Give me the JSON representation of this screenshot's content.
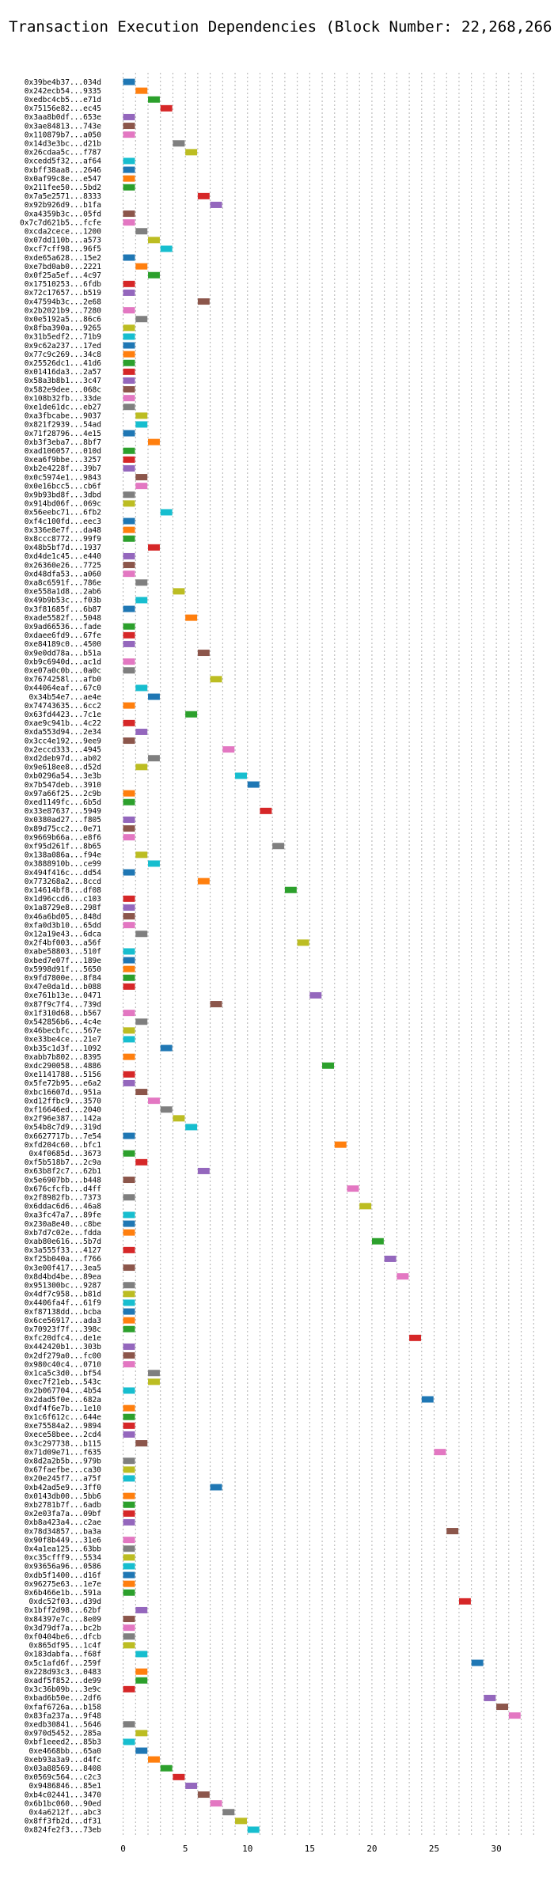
{
  "chart_data": {
    "type": "gantt",
    "title": "Transaction Execution Dependencies (Block Number: 22,268,266)",
    "xlim": [
      -1.5,
      34
    ],
    "xticks": [
      0,
      5,
      10,
      15,
      20,
      25,
      30
    ],
    "grid": true,
    "palette": [
      "#1f77b4",
      "#ff7f0e",
      "#2ca02c",
      "#d62728",
      "#9467bd",
      "#8c564b",
      "#e377c2",
      "#7f7f7f",
      "#bcbd22",
      "#17becf"
    ],
    "bar_duration": 1,
    "transactions": [
      {
        "label": "0x39be4b37...034d",
        "start": 0
      },
      {
        "label": "0x242ecb54...9335",
        "start": 1
      },
      {
        "label": "0xedbc4cb5...e71d",
        "start": 2
      },
      {
        "label": "0x75156e82...ec45",
        "start": 3
      },
      {
        "label": "0x3aa8b0df...653e",
        "start": 0
      },
      {
        "label": "0x3ae84813...743e",
        "start": 0
      },
      {
        "label": "0x110879b7...a050",
        "start": 0
      },
      {
        "label": "0x14d3e3bc...d21b",
        "start": 4
      },
      {
        "label": "0x26cdaa5c...f787",
        "start": 5
      },
      {
        "label": "0xcedd5f32...af64",
        "start": 0
      },
      {
        "label": "0xbff38aa8...2646",
        "start": 0
      },
      {
        "label": "0x0af99c8e...e547",
        "start": 0
      },
      {
        "label": "0x211fee50...5bd2",
        "start": 0
      },
      {
        "label": "0x7a5e2571...8333",
        "start": 6
      },
      {
        "label": "0x92b926d9...b1fa",
        "start": 7
      },
      {
        "label": "0xa4359b3c...05fd",
        "start": 0
      },
      {
        "label": "0x7c7d621b5...fcfe",
        "start": 0
      },
      {
        "label": "0xcda2cece...1200",
        "start": 1
      },
      {
        "label": "0x07dd110b...a573",
        "start": 2
      },
      {
        "label": "0xcf7cff98...96f5",
        "start": 3
      },
      {
        "label": "0xde65a628...15e2",
        "start": 0
      },
      {
        "label": "0xe7bd0ab0...2221",
        "start": 1
      },
      {
        "label": "0x0f25a5ef...4c97",
        "start": 2
      },
      {
        "label": "0x17510253...6fdb",
        "start": 0
      },
      {
        "label": "0x72c17657...b519",
        "start": 0
      },
      {
        "label": "0x47594b3c...2e68",
        "start": 6
      },
      {
        "label": "0x2b2021b9...7280",
        "start": 0
      },
      {
        "label": "0x0e5192a5...86c6",
        "start": 1
      },
      {
        "label": "0x8fba390a...9265",
        "start": 0
      },
      {
        "label": "0x31b5edf2...71b9",
        "start": 0
      },
      {
        "label": "0x9c62a237...17ed",
        "start": 0
      },
      {
        "label": "0x77c9c269...34c8",
        "start": 0
      },
      {
        "label": "0x25526dc1...41d6",
        "start": 0
      },
      {
        "label": "0x01416da3...2a57",
        "start": 0
      },
      {
        "label": "0x58a3b8b1...3c47",
        "start": 0
      },
      {
        "label": "0x582e9dee...068c",
        "start": 0
      },
      {
        "label": "0x108b32fb...33de",
        "start": 0
      },
      {
        "label": "0xe1de61dc...eb27",
        "start": 0
      },
      {
        "label": "0xa3fbcabe...9037",
        "start": 1
      },
      {
        "label": "0x821f2939...54ad",
        "start": 1
      },
      {
        "label": "0x71f28796...4e15",
        "start": 0
      },
      {
        "label": "0xb3f3eba7...8bf7",
        "start": 2
      },
      {
        "label": "0xad106057...010d",
        "start": 0
      },
      {
        "label": "0xea6f9bbe...3257",
        "start": 0
      },
      {
        "label": "0xb2e4228f...39b7",
        "start": 0
      },
      {
        "label": "0x0c5974e1...9843",
        "start": 1
      },
      {
        "label": "0x0e16bcc5...cb6f",
        "start": 1
      },
      {
        "label": "0x9b93bd8f...3dbd",
        "start": 0
      },
      {
        "label": "0x914bd06f...069c",
        "start": 0
      },
      {
        "label": "0x56eebc71...6fb2",
        "start": 3
      },
      {
        "label": "0xf4c100fd...eec3",
        "start": 0
      },
      {
        "label": "0x336e8e7f...da48",
        "start": 0
      },
      {
        "label": "0x8ccc8772...99f9",
        "start": 0
      },
      {
        "label": "0x48b5bf7d...1937",
        "start": 2
      },
      {
        "label": "0xd4de1c45...e440",
        "start": 0
      },
      {
        "label": "0x26360e26...7725",
        "start": 0
      },
      {
        "label": "0xd48dfa53...a060",
        "start": 0
      },
      {
        "label": "0xa8c6591f...786e",
        "start": 1
      },
      {
        "label": "0xe558a1d8...2ab6",
        "start": 4
      },
      {
        "label": "0x49b9b53c...f03b",
        "start": 1
      },
      {
        "label": "0x3f81685f...6b87",
        "start": 0
      },
      {
        "label": "0xade5582f...5048",
        "start": 5
      },
      {
        "label": "0x9ad66536...fade",
        "start": 0
      },
      {
        "label": "0xdaee6fd9...67fe",
        "start": 0
      },
      {
        "label": "0xe84189c0...4500",
        "start": 0
      },
      {
        "label": "0x9e0dd78a...b51a",
        "start": 6
      },
      {
        "label": "0xb9c6940d...ac1d",
        "start": 0
      },
      {
        "label": "0xe07a0c0b...0a0c",
        "start": 0
      },
      {
        "label": "0x7674258l...afb0",
        "start": 7
      },
      {
        "label": "0x44064eaf...67c0",
        "start": 1
      },
      {
        "label": "0x34b54e7...ae4e",
        "start": 2
      },
      {
        "label": "0x74743635...6cc2",
        "start": 0
      },
      {
        "label": "0x63fd4423...7c1e",
        "start": 5
      },
      {
        "label": "0xae9c941b...4c22",
        "start": 0
      },
      {
        "label": "0xda553d94...2e34",
        "start": 1
      },
      {
        "label": "0x3cc4e192...9ee9",
        "start": 0
      },
      {
        "label": "0x2eccd333...4945",
        "start": 8
      },
      {
        "label": "0xd2deb97d...ab02",
        "start": 2
      },
      {
        "label": "0x9e618ee8...d52d",
        "start": 1
      },
      {
        "label": "0xb0296a54...3e3b",
        "start": 9
      },
      {
        "label": "0x7b547deb...3910",
        "start": 10
      },
      {
        "label": "0x97a66f25...2c9b",
        "start": 0
      },
      {
        "label": "0xed1149fc...6b5d",
        "start": 0
      },
      {
        "label": "0x33e87637...5949",
        "start": 11
      },
      {
        "label": "0x0380ad27...f805",
        "start": 0
      },
      {
        "label": "0x89d75cc2...0e71",
        "start": 0
      },
      {
        "label": "0x9669b66a...e8f6",
        "start": 0
      },
      {
        "label": "0xf95d261f...8b65",
        "start": 12
      },
      {
        "label": "0x138a086a...f94e",
        "start": 1
      },
      {
        "label": "0x3888910b...ce99",
        "start": 2
      },
      {
        "label": "0x494f416c...dd54",
        "start": 0
      },
      {
        "label": "0x773268a2...8ccd",
        "start": 6
      },
      {
        "label": "0x14614bf8...df08",
        "start": 13
      },
      {
        "label": "0x1d96ccd6...c103",
        "start": 0
      },
      {
        "label": "0x1a8729e8...298f",
        "start": 0
      },
      {
        "label": "0x46a6bd05...848d",
        "start": 0
      },
      {
        "label": "0xfa0d3b10...65dd",
        "start": 0
      },
      {
        "label": "0x12a19e43...6dca",
        "start": 1
      },
      {
        "label": "0x2f4bf003...a56f",
        "start": 14
      },
      {
        "label": "0xabe58803...510f",
        "start": 0
      },
      {
        "label": "0xbed7e07f...189e",
        "start": 0
      },
      {
        "label": "0x5998d91f...5650",
        "start": 0
      },
      {
        "label": "0x9fd7800e...8f84",
        "start": 0
      },
      {
        "label": "0x47e0da1d...b088",
        "start": 0
      },
      {
        "label": "0xe761b13e...0471",
        "start": 15
      },
      {
        "label": "0x87f9c7f4...739d",
        "start": 7
      },
      {
        "label": "0x1f310d68...b567",
        "start": 0
      },
      {
        "label": "0x542856b6...4c4e",
        "start": 1
      },
      {
        "label": "0x46becbfc...567e",
        "start": 0
      },
      {
        "label": "0xe33be4ce...21e7",
        "start": 0
      },
      {
        "label": "0xb35c1d3f...1092",
        "start": 3
      },
      {
        "label": "0xabb7b802...8395",
        "start": 0
      },
      {
        "label": "0xdc290058...4886",
        "start": 16
      },
      {
        "label": "0xe1141788...5156",
        "start": 0
      },
      {
        "label": "0x5fe72b95...e6a2",
        "start": 0
      },
      {
        "label": "0xbc16607d...951a",
        "start": 1
      },
      {
        "label": "0xd12ffbc9...3570",
        "start": 2
      },
      {
        "label": "0xf16646ed...2040",
        "start": 3
      },
      {
        "label": "0x2f96e387...142a",
        "start": 4
      },
      {
        "label": "0x54b8c7d9...319d",
        "start": 5
      },
      {
        "label": "0x6627717b...7e54",
        "start": 0
      },
      {
        "label": "0xfd204c60...bfc1",
        "start": 17
      },
      {
        "label": "0x4f0685d...3673",
        "start": 0
      },
      {
        "label": "0xf5b518b7...2c9a",
        "start": 1
      },
      {
        "label": "0x63b8f2c7...62b1",
        "start": 6
      },
      {
        "label": "0x5e6907bb...b448",
        "start": 0
      },
      {
        "label": "0x676cfcfb...d4ff",
        "start": 18
      },
      {
        "label": "0x2f8982fb...7373",
        "start": 0
      },
      {
        "label": "0x6ddac6d6...46a8",
        "start": 19
      },
      {
        "label": "0xa3fc47a7...89fe",
        "start": 0
      },
      {
        "label": "0x230a8e40...c8be",
        "start": 0
      },
      {
        "label": "0xb7d7c02e...fdda",
        "start": 0
      },
      {
        "label": "0xab80e616...5b7d",
        "start": 20
      },
      {
        "label": "0x3a555f33...4127",
        "start": 0
      },
      {
        "label": "0xf25b040a...f766",
        "start": 21
      },
      {
        "label": "0x3e00f417...3ea5",
        "start": 0
      },
      {
        "label": "0x8d4bd4be...89ea",
        "start": 22
      },
      {
        "label": "0x951300bc...9287",
        "start": 0
      },
      {
        "label": "0x4df7c958...b81d",
        "start": 0
      },
      {
        "label": "0x4406fa4f...61f9",
        "start": 0
      },
      {
        "label": "0xf87138dd...bcba",
        "start": 0
      },
      {
        "label": "0x6ce56917...ada3",
        "start": 0
      },
      {
        "label": "0x70923f7f...398c",
        "start": 0
      },
      {
        "label": "0xfc20dfc4...de1e",
        "start": 23
      },
      {
        "label": "0x442420b1...303b",
        "start": 0
      },
      {
        "label": "0x2df279a0...fc00",
        "start": 0
      },
      {
        "label": "0x980c40c4...0710",
        "start": 0
      },
      {
        "label": "0x1ca5c3d0...bf54",
        "start": 2
      },
      {
        "label": "0xec7f21eb...543c",
        "start": 2
      },
      {
        "label": "0x2b067704...4b54",
        "start": 0
      },
      {
        "label": "0x2dad5f0e...682a",
        "start": 24
      },
      {
        "label": "0xdf4f6e7b...1e10",
        "start": 0
      },
      {
        "label": "0x1c6f612c...644e",
        "start": 0
      },
      {
        "label": "0xe75584a2...9894",
        "start": 0
      },
      {
        "label": "0xece58bee...2cd4",
        "start": 0
      },
      {
        "label": "0x3c297738...b115",
        "start": 1
      },
      {
        "label": "0x71d09e71...f635",
        "start": 25
      },
      {
        "label": "0x8d2a2b5b...979b",
        "start": 0
      },
      {
        "label": "0x67faefbe...ca30",
        "start": 0
      },
      {
        "label": "0x20e245f7...a75f",
        "start": 0
      },
      {
        "label": "0xb42ad5e9...3ff0",
        "start": 7
      },
      {
        "label": "0x0143db00...5bb6",
        "start": 0
      },
      {
        "label": "0xb2781b7f...6adb",
        "start": 0
      },
      {
        "label": "0x2e03fa7a...09bf",
        "start": 0
      },
      {
        "label": "0xb8a423a4...c2ae",
        "start": 0
      },
      {
        "label": "0x78d34857...ba3a",
        "start": 26
      },
      {
        "label": "0x90f8b449...31e6",
        "start": 0
      },
      {
        "label": "0x4a1ea125...63bb",
        "start": 0
      },
      {
        "label": "0xc35cfff9...5534",
        "start": 0
      },
      {
        "label": "0x93656a96...0586",
        "start": 0
      },
      {
        "label": "0xdb5f1400...d16f",
        "start": 0
      },
      {
        "label": "0x96275e63...1e7e",
        "start": 0
      },
      {
        "label": "0x6b466e1b...591a",
        "start": 0
      },
      {
        "label": "0xdc52f03...d39d",
        "start": 27
      },
      {
        "label": "0x1bff2d98...62bf",
        "start": 1
      },
      {
        "label": "0x84397e7c...8e09",
        "start": 0
      },
      {
        "label": "0x3d79df7a...bc2b",
        "start": 0
      },
      {
        "label": "0xf0404be6...dfcb",
        "start": 0
      },
      {
        "label": "0x865df95...1c4f",
        "start": 0
      },
      {
        "label": "0x183dabfa...f68f",
        "start": 1
      },
      {
        "label": "0x5c1afd6f...259f",
        "start": 28
      },
      {
        "label": "0x228d93c3...0483",
        "start": 1
      },
      {
        "label": "0xadf5f852...de99",
        "start": 1
      },
      {
        "label": "0x3c36b09b...3e9c",
        "start": 0
      },
      {
        "label": "0xbad6b50e...2df6",
        "start": 29
      },
      {
        "label": "0xfaf6726a...b158",
        "start": 30
      },
      {
        "label": "0x83fa237a...9f48",
        "start": 31
      },
      {
        "label": "0xedb30841...5646",
        "start": 0
      },
      {
        "label": "0x970d5452...285a",
        "start": 1
      },
      {
        "label": "0xbf1eeed2...85b3",
        "start": 0
      },
      {
        "label": "0xe4668bb...65a0",
        "start": 1
      },
      {
        "label": "0xeb93a3a9...d4fc",
        "start": 2
      },
      {
        "label": "0x03a88569...8408",
        "start": 3
      },
      {
        "label": "0x0569c564...c2c3",
        "start": 4
      },
      {
        "label": "0x9486846...85e1",
        "start": 5
      },
      {
        "label": "0xb4c02441...3470",
        "start": 6
      },
      {
        "label": "0x6b1bc060...90ed",
        "start": 7
      },
      {
        "label": "0x4a6212f...abc3",
        "start": 8
      },
      {
        "label": "0x8ff3fb2d...df31",
        "start": 9
      },
      {
        "label": "0x824fe2f3...73eb",
        "start": 10
      }
    ]
  }
}
